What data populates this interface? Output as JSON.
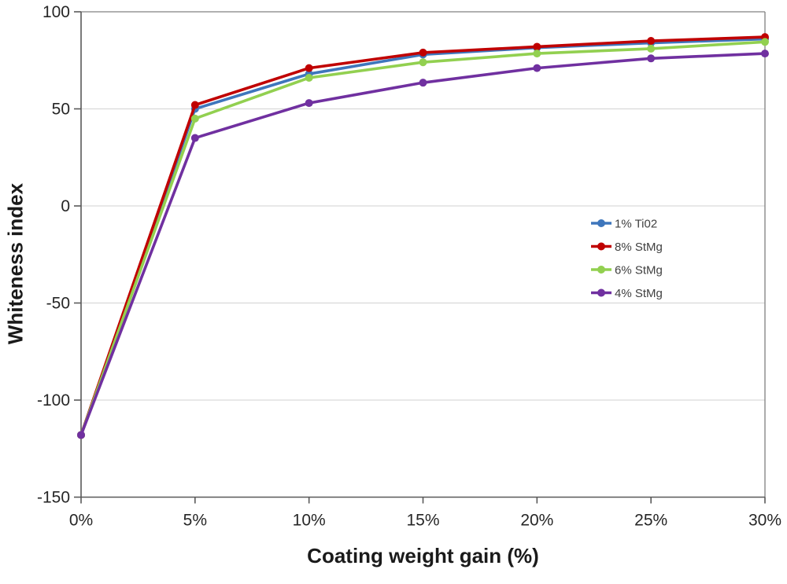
{
  "chart_data": {
    "type": "line",
    "title": "",
    "xlabel": "Coating weight gain (%)",
    "ylabel": "Whiteness index",
    "categories": [
      "0%",
      "5%",
      "10%",
      "15%",
      "20%",
      "25%",
      "30%"
    ],
    "x_numeric": [
      0,
      5,
      10,
      15,
      20,
      25,
      30
    ],
    "series": [
      {
        "name": "1% Ti02",
        "color": "#3E76BC",
        "values": [
          -118,
          50,
          68,
          78,
          81.5,
          84,
          86
        ]
      },
      {
        "name": "8% StMg",
        "color": "#C00000",
        "values": [
          -118,
          52,
          71,
          79,
          82,
          85,
          87
        ]
      },
      {
        "name": "6% StMg",
        "color": "#92D050",
        "values": [
          -118,
          45,
          66,
          74,
          78.5,
          81,
          84.5
        ]
      },
      {
        "name": "4% StMg",
        "color": "#7030A0",
        "values": [
          -118,
          35,
          53,
          63.5,
          71,
          76,
          78.5
        ]
      }
    ],
    "y_ticks": [
      100,
      50,
      0,
      -50,
      -100,
      -150
    ],
    "ylim": [
      -150,
      100
    ],
    "xlim": [
      0,
      30
    ],
    "grid": "horizontal",
    "legend_position": "middle-right",
    "colors": {
      "gridline": "#D9D9D9",
      "plot_border": "#808080",
      "axis_line": "#595959",
      "tick_label": "#262626",
      "legend_text": "#404040",
      "axis_title": "#1a1a1a",
      "background": "#ffffff"
    }
  }
}
